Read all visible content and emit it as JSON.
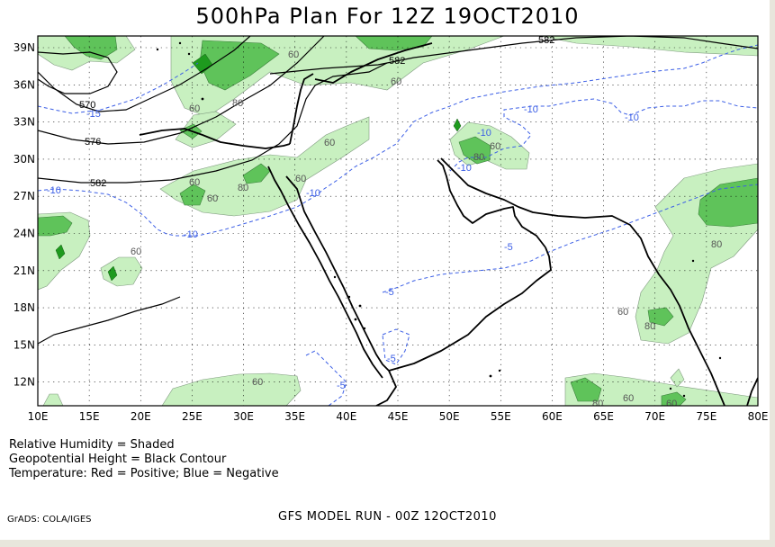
{
  "title": "500hPa Plan For 12Z 19OCT2010",
  "legend": {
    "line1": "Relative Humidity = Shaded",
    "line2": "Geopotential Height = Black Contour",
    "line3": "Temperature: Red = Positive; Blue = Negative"
  },
  "footer": {
    "left": "GrADS: COLA/IGES",
    "center": "GFS MODEL RUN - 00Z 12OCT2010"
  },
  "axes": {
    "lon_labels": [
      "10E",
      "15E",
      "20E",
      "25E",
      "30E",
      "35E",
      "40E",
      "45E",
      "50E",
      "55E",
      "60E",
      "65E",
      "70E",
      "75E",
      "80E"
    ],
    "lat_labels": [
      "39N",
      "36N",
      "33N",
      "30N",
      "27N",
      "24N",
      "21N",
      "18N",
      "15N",
      "12N"
    ]
  },
  "contour_labels": {
    "height": [
      "582",
      "582",
      "570",
      "576",
      "582"
    ],
    "temperature": [
      "-10",
      "-10",
      "-10",
      "-10",
      "-10",
      "-15",
      "-10",
      "-10",
      "-5",
      "-5",
      "-5",
      "-5"
    ],
    "humidity": [
      "60",
      "80",
      "60",
      "60",
      "80",
      "60",
      "60",
      "60",
      "60",
      "60",
      "80",
      "60",
      "80",
      "60",
      "80",
      "60",
      "80",
      "60",
      "60"
    ]
  },
  "colors": {
    "rh_60": "#c8f0c0",
    "rh_80": "#5fc35a",
    "rh_90": "#1e9a1e",
    "height_contour": "#000000",
    "temp_negative": "#3c5fe6",
    "coast": "#000000",
    "grid": "#000000"
  }
}
